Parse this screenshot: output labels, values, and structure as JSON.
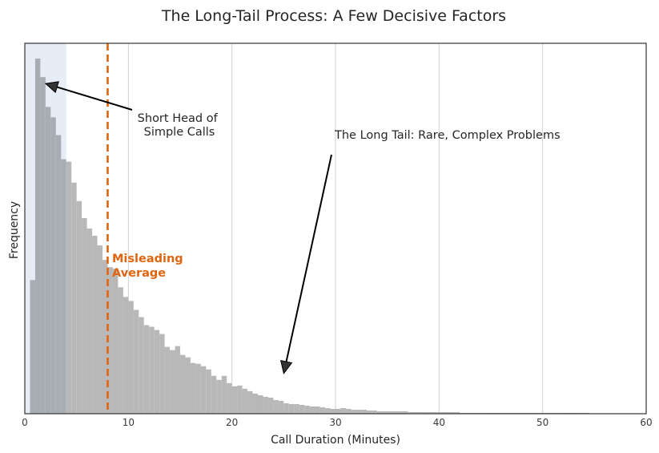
{
  "chart_data": {
    "type": "bar",
    "title": "The Long-Tail Process: A Few Decisive Factors",
    "xlabel": "Call Duration (Minutes)",
    "ylabel": "Frequency",
    "xlim": [
      0,
      60
    ],
    "ylim": [
      0,
      460
    ],
    "x_ticks": [
      "0",
      "10",
      "20",
      "30",
      "40",
      "50",
      "60"
    ],
    "x_tick_values": [
      0,
      10,
      20,
      30,
      40,
      50,
      60
    ],
    "grid": "vertical",
    "bin_width": 0.5,
    "bin_start": 0.5,
    "values": [
      166,
      441,
      418,
      381,
      368,
      346,
      316,
      313,
      287,
      264,
      243,
      230,
      221,
      209,
      191,
      182,
      180,
      157,
      145,
      140,
      129,
      120,
      110,
      108,
      104,
      99,
      83,
      79,
      84,
      73,
      70,
      63,
      62,
      59,
      55,
      47,
      42,
      47,
      38,
      34,
      35,
      31,
      28,
      25,
      23,
      21,
      20,
      17,
      16,
      13,
      12,
      12,
      11,
      10,
      9,
      9,
      8,
      7,
      6,
      6,
      7,
      6,
      5,
      5,
      5,
      4,
      4,
      3,
      3,
      3,
      3,
      3,
      3,
      2,
      2,
      2,
      2,
      2,
      2,
      2,
      2,
      2,
      2,
      1,
      1,
      1,
      1,
      1,
      1,
      1,
      1,
      1,
      1,
      1,
      1,
      1,
      1,
      1,
      1,
      1,
      1,
      1,
      1,
      1,
      1,
      1,
      1,
      1
    ],
    "mean_line": {
      "x": 8,
      "label": "Misleading\nAverage",
      "color": "#e0650f"
    },
    "short_head_span": [
      0,
      4
    ],
    "annotations": [
      {
        "text": "Short Head of\nSimple Calls",
        "point": [
          2,
          410
        ]
      },
      {
        "text": "The Long Tail: Rare, Complex Problems",
        "point": [
          25,
          50
        ]
      }
    ],
    "colors": {
      "bars": "#b8b8b8",
      "short_head": "#e7edf6",
      "bars_in_head": "#a8adb4",
      "mean_line": "#e0650f",
      "arrow": "#000000"
    }
  }
}
